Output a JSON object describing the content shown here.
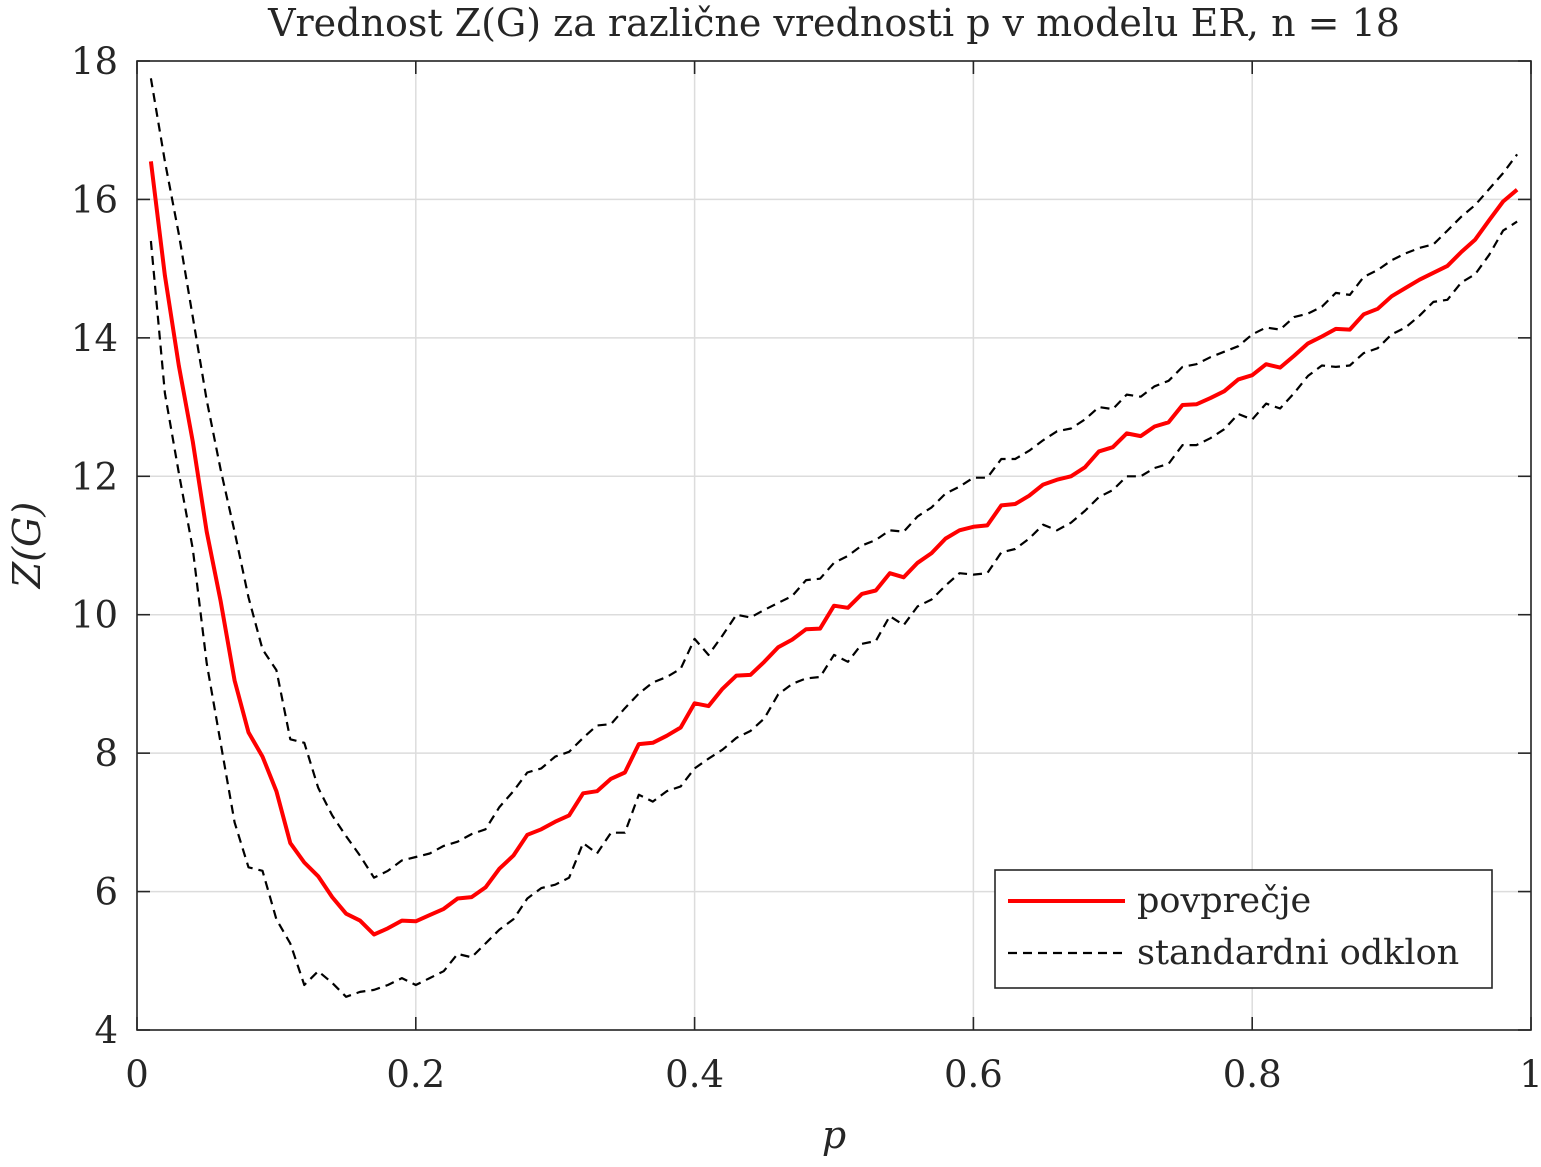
{
  "chart_data": {
    "type": "line",
    "title": "Vrednost Z(G) za različne vrednosti p v modelu ER, n = 18",
    "xlabel": "p",
    "ylabel": "Z(G)",
    "xlim": [
      0,
      1
    ],
    "ylim": [
      4,
      18
    ],
    "xticks": [
      0,
      0.2,
      0.4,
      0.6,
      0.8,
      1
    ],
    "xtick_labels": [
      "0",
      "0.2",
      "0.4",
      "0.6",
      "0.8",
      "1"
    ],
    "yticks": [
      4,
      6,
      8,
      10,
      12,
      14,
      16,
      18
    ],
    "ytick_labels": [
      "4",
      "6",
      "8",
      "10",
      "12",
      "14",
      "16",
      "18"
    ],
    "grid": true,
    "legend_position": "bottom-right",
    "colors": {
      "mean": "#ff0000",
      "std": "#000000",
      "grid": "#dcdcdc",
      "axis": "#262626"
    },
    "x": [
      0.01,
      0.02,
      0.03,
      0.04,
      0.05,
      0.06,
      0.07,
      0.08,
      0.09,
      0.1,
      0.11,
      0.12,
      0.13,
      0.14,
      0.15,
      0.16,
      0.17,
      0.18,
      0.19,
      0.2,
      0.21,
      0.22,
      0.23,
      0.24,
      0.25,
      0.26,
      0.27,
      0.28,
      0.29,
      0.3,
      0.31,
      0.32,
      0.33,
      0.34,
      0.35,
      0.36,
      0.37,
      0.38,
      0.39,
      0.4,
      0.41,
      0.42,
      0.43,
      0.44,
      0.45,
      0.46,
      0.47,
      0.48,
      0.49,
      0.5,
      0.51,
      0.52,
      0.53,
      0.54,
      0.55,
      0.56,
      0.57,
      0.58,
      0.59,
      0.6,
      0.61,
      0.62,
      0.63,
      0.64,
      0.65,
      0.66,
      0.67,
      0.68,
      0.69,
      0.7,
      0.71,
      0.72,
      0.73,
      0.74,
      0.75,
      0.76,
      0.77,
      0.78,
      0.79,
      0.8,
      0.81,
      0.82,
      0.83,
      0.84,
      0.85,
      0.86,
      0.87,
      0.88,
      0.89,
      0.9,
      0.91,
      0.92,
      0.93,
      0.94,
      0.95,
      0.96,
      0.97,
      0.98,
      0.99
    ],
    "series": [
      {
        "name": "povprečje",
        "style": "solid",
        "values": [
          16.55,
          14.9,
          13.6,
          12.5,
          11.2,
          10.2,
          9.05,
          8.3,
          7.95,
          7.45,
          6.7,
          6.42,
          6.22,
          5.92,
          5.68,
          5.58,
          5.38,
          5.47,
          5.58,
          5.57,
          5.66,
          5.75,
          5.9,
          5.92,
          6.06,
          6.33,
          6.52,
          6.82,
          6.9,
          7.01,
          7.1,
          7.42,
          7.45,
          7.63,
          7.72,
          8.13,
          8.15,
          8.25,
          8.37,
          8.72,
          8.68,
          8.93,
          9.12,
          9.13,
          9.32,
          9.53,
          9.64,
          9.79,
          9.8,
          10.13,
          10.1,
          10.3,
          10.35,
          10.6,
          10.54,
          10.75,
          10.89,
          11.1,
          11.22,
          11.27,
          11.29,
          11.58,
          11.6,
          11.72,
          11.88,
          11.95,
          12.0,
          12.13,
          12.36,
          12.42,
          12.62,
          12.58,
          12.72,
          12.78,
          13.03,
          13.04,
          13.13,
          13.23,
          13.4,
          13.46,
          13.62,
          13.57,
          13.74,
          13.92,
          14.02,
          14.13,
          14.12,
          14.34,
          14.42,
          14.6,
          14.72,
          14.84,
          14.94,
          15.04,
          15.24,
          15.42,
          15.7,
          15.97,
          16.14
        ]
      },
      {
        "name": "standardni odklon",
        "style": "dashed",
        "values": [
          17.75,
          16.55,
          15.5,
          14.3,
          13.1,
          12.1,
          11.2,
          10.25,
          9.5,
          9.2,
          8.2,
          8.15,
          7.5,
          7.1,
          6.8,
          6.52,
          6.2,
          6.3,
          6.45,
          6.5,
          6.55,
          6.66,
          6.72,
          6.83,
          6.9,
          7.22,
          7.45,
          7.72,
          7.78,
          7.95,
          8.02,
          8.22,
          8.4,
          8.42,
          8.65,
          8.86,
          9.02,
          9.1,
          9.22,
          9.65,
          9.42,
          9.7,
          10.0,
          9.96,
          10.07,
          10.17,
          10.27,
          10.5,
          10.52,
          10.75,
          10.85,
          11.0,
          11.08,
          11.22,
          11.2,
          11.42,
          11.55,
          11.75,
          11.85,
          11.98,
          11.98,
          12.25,
          12.25,
          12.37,
          12.52,
          12.65,
          12.69,
          12.82,
          13.0,
          12.97,
          13.18,
          13.15,
          13.3,
          13.38,
          13.58,
          13.62,
          13.72,
          13.8,
          13.88,
          14.05,
          14.15,
          14.12,
          14.3,
          14.35,
          14.45,
          14.65,
          14.62,
          14.88,
          14.98,
          15.12,
          15.22,
          15.3,
          15.35,
          15.55,
          15.75,
          15.92,
          16.15,
          16.38,
          16.65
        ]
      },
      {
        "style": "dashed",
        "values": [
          15.4,
          13.2,
          12.05,
          10.95,
          9.3,
          8.15,
          7.0,
          6.35,
          6.3,
          5.6,
          5.25,
          4.65,
          4.85,
          4.68,
          4.48,
          4.55,
          4.58,
          4.65,
          4.75,
          4.65,
          4.75,
          4.85,
          5.1,
          5.05,
          5.25,
          5.45,
          5.6,
          5.9,
          6.05,
          6.1,
          6.2,
          6.7,
          6.55,
          6.85,
          6.85,
          7.4,
          7.3,
          7.45,
          7.52,
          7.78,
          7.92,
          8.05,
          8.22,
          8.32,
          8.5,
          8.85,
          9.0,
          9.08,
          9.1,
          9.42,
          9.32,
          9.58,
          9.62,
          9.98,
          9.85,
          10.12,
          10.22,
          10.42,
          10.6,
          10.58,
          10.6,
          10.9,
          10.95,
          11.1,
          11.3,
          11.22,
          11.33,
          11.5,
          11.7,
          11.8,
          12.0,
          12.0,
          12.12,
          12.18,
          12.45,
          12.45,
          12.55,
          12.68,
          12.9,
          12.82,
          13.05,
          12.98,
          13.2,
          13.45,
          13.6,
          13.58,
          13.6,
          13.78,
          13.85,
          14.05,
          14.15,
          14.32,
          14.52,
          14.55,
          14.8,
          14.92,
          15.2,
          15.55,
          15.68
        ]
      }
    ],
    "legend": [
      {
        "label": "povprečje",
        "style": "solid"
      },
      {
        "label": "standardni odklon",
        "style": "dashed"
      }
    ]
  }
}
